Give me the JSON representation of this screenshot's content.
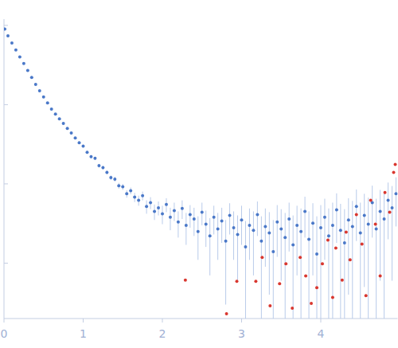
{
  "chart_data": {
    "type": "scatter",
    "log": "y",
    "tick_labels": "x",
    "grid": false,
    "xlim": [
      0,
      4.97
    ],
    "ylim": [
      0.0002,
      1.2
    ],
    "xticks": [
      0,
      1,
      2,
      3,
      4
    ],
    "yticks": [
      0.001,
      0.01,
      0.1,
      1
    ],
    "series": [
      {
        "color": "#4a78c8",
        "marker": "circle",
        "x": [
          0.01,
          0.05,
          0.1,
          0.15,
          0.2,
          0.25,
          0.3,
          0.35,
          0.4,
          0.45,
          0.5,
          0.55,
          0.6,
          0.65,
          0.7,
          0.75,
          0.8,
          0.85,
          0.9,
          0.95,
          1.0,
          1.05,
          1.1,
          1.15,
          1.2,
          1.25,
          1.3,
          1.35,
          1.4,
          1.45,
          1.5,
          1.55,
          1.6,
          1.65,
          1.7,
          1.75,
          1.8,
          1.85,
          1.9,
          1.95,
          2.0,
          2.05,
          2.1,
          2.15,
          2.2,
          2.25,
          2.3,
          2.35,
          2.4,
          2.45,
          2.5,
          2.55,
          2.6,
          2.65,
          2.7,
          2.75,
          2.8,
          2.85,
          2.9,
          2.95,
          3.0,
          3.05,
          3.1,
          3.15,
          3.2,
          3.25,
          3.3,
          3.35,
          3.4,
          3.45,
          3.5,
          3.55,
          3.6,
          3.65,
          3.7,
          3.75,
          3.8,
          3.85,
          3.9,
          3.95,
          4.0,
          4.05,
          4.1,
          4.15,
          4.2,
          4.25,
          4.3,
          4.35,
          4.4,
          4.45,
          4.5,
          4.55,
          4.6,
          4.65,
          4.7,
          4.75,
          4.8,
          4.85,
          4.9,
          4.95
        ],
        "values": [
          0.9,
          0.74,
          0.6,
          0.49,
          0.4,
          0.33,
          0.27,
          0.22,
          0.18,
          0.15,
          0.125,
          0.105,
          0.088,
          0.076,
          0.066,
          0.058,
          0.05,
          0.044,
          0.038,
          0.033,
          0.03,
          0.025,
          0.022,
          0.021,
          0.017,
          0.016,
          0.014,
          0.012,
          0.0115,
          0.0095,
          0.0092,
          0.0075,
          0.0082,
          0.0068,
          0.0062,
          0.0071,
          0.0052,
          0.0058,
          0.0045,
          0.005,
          0.0042,
          0.0055,
          0.0038,
          0.0046,
          0.0033,
          0.0049,
          0.003,
          0.0041,
          0.0036,
          0.0025,
          0.0044,
          0.0031,
          0.0022,
          0.0038,
          0.0027,
          0.0034,
          0.0019,
          0.004,
          0.0028,
          0.0023,
          0.0035,
          0.0016,
          0.003,
          0.0026,
          0.0041,
          0.0019,
          0.0029,
          0.0024,
          0.0014,
          0.0033,
          0.0027,
          0.0021,
          0.0036,
          0.0017,
          0.003,
          0.0025,
          0.0045,
          0.002,
          0.0032,
          0.0013,
          0.0028,
          0.0038,
          0.0022,
          0.003,
          0.0047,
          0.0026,
          0.0018,
          0.0035,
          0.0029,
          0.0052,
          0.0024,
          0.004,
          0.0031,
          0.0058,
          0.0027,
          0.0045,
          0.0036,
          0.0062,
          0.005,
          0.0075
        ],
        "errors": [
          0.018,
          0.015,
          0.012,
          0.01,
          0.008,
          0.007,
          0.005,
          0.004,
          0.004,
          0.003,
          0.003,
          0.002,
          0.002,
          0.002,
          0.0015,
          0.0013,
          0.0012,
          0.001,
          0.001,
          0.0009,
          0.0012,
          0.001,
          0.001,
          0.001,
          0.0009,
          0.0009,
          0.0008,
          0.0008,
          0.0008,
          0.0008,
          0.0008,
          0.0008,
          0.0008,
          0.0009,
          0.0009,
          0.0009,
          0.001,
          0.001,
          0.001,
          0.001,
          0.0011,
          0.0011,
          0.0012,
          0.0012,
          0.0012,
          0.0013,
          0.0013,
          0.0013,
          0.0014,
          0.0014,
          0.0014,
          0.0015,
          0.0015,
          0.0015,
          0.0016,
          0.0016,
          0.0016,
          0.0017,
          0.0017,
          0.0017,
          0.0018,
          0.0018,
          0.0019,
          0.0019,
          0.0019,
          0.002,
          0.002,
          0.002,
          0.0021,
          0.0021,
          0.0021,
          0.0022,
          0.0022,
          0.0023,
          0.0023,
          0.0024,
          0.0024,
          0.0025,
          0.0025,
          0.0026,
          0.0026,
          0.0027,
          0.0027,
          0.0028,
          0.0029,
          0.003,
          0.003,
          0.0031,
          0.0032,
          0.0033,
          0.0034,
          0.0035,
          0.0036,
          0.0037,
          0.0038,
          0.0039,
          0.004,
          0.0042,
          0.0044,
          0.0046
        ]
      },
      {
        "color": "#d9372f",
        "marker": "circle",
        "x": [
          2.29,
          2.81,
          2.94,
          3.18,
          3.26,
          3.36,
          3.48,
          3.56,
          3.64,
          3.74,
          3.81,
          3.88,
          3.95,
          4.02,
          4.09,
          4.15,
          4.19,
          4.27,
          4.32,
          4.37,
          4.45,
          4.52,
          4.57,
          4.63,
          4.69,
          4.75,
          4.81,
          4.87,
          4.92,
          4.94
        ],
        "values": [
          0.00061,
          0.00023,
          0.00059,
          0.00059,
          0.00118,
          0.00029,
          0.00055,
          0.00098,
          0.00027,
          0.00118,
          0.00069,
          0.00031,
          0.00049,
          0.00098,
          0.00195,
          0.00037,
          0.00155,
          0.00061,
          0.00246,
          0.0011,
          0.0041,
          0.00174,
          0.00039,
          0.0062,
          0.0031,
          0.00069,
          0.0078,
          0.0044,
          0.014,
          0.0176
        ]
      }
    ]
  }
}
